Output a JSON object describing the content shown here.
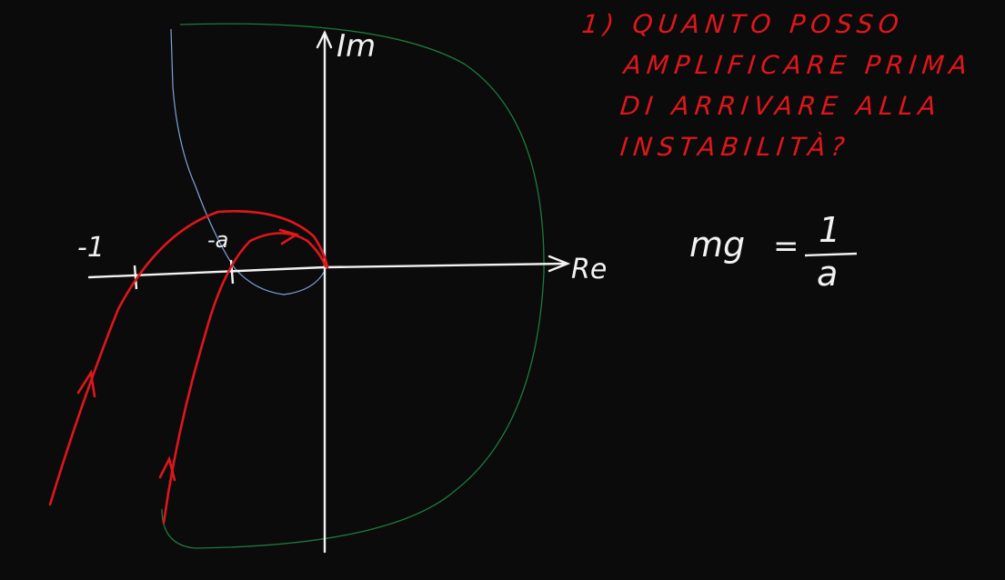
{
  "axes": {
    "imag_label": "Im",
    "real_label": "Re",
    "tick_minus_one": "-1",
    "tick_minus_a": "-a"
  },
  "question": {
    "lines": [
      "1) QUANTO POSSO",
      "AMPLIFICARE PRIMA",
      "DI ARRIVARE ALLA",
      "INSTABILITÀ?"
    ]
  },
  "formula": {
    "lhs": "mg",
    "eq": "=",
    "numerator": "1",
    "denominator": "a"
  },
  "colors": {
    "background": "#0b0b0b",
    "ink_white": "#f2f2f2",
    "ink_red": "#e0161b",
    "ink_green": "#1f7a3e",
    "ink_blue": "#7fa3d8"
  }
}
